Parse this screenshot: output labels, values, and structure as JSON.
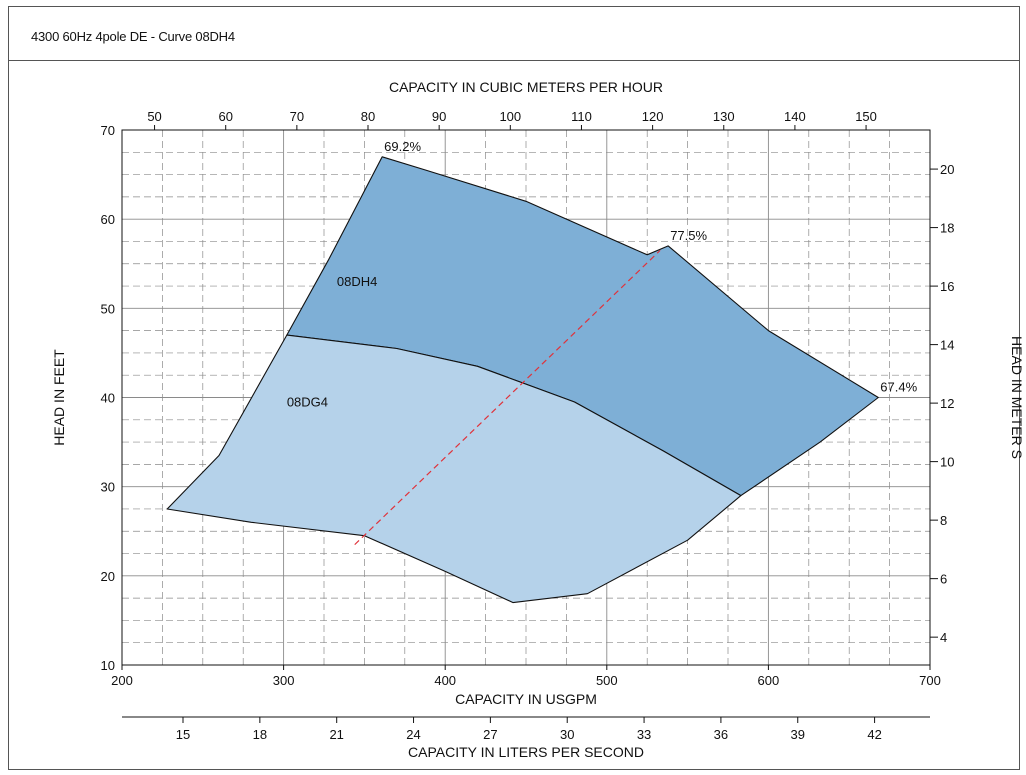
{
  "page": {
    "title": "4300 60Hz 4pole DE - Curve 08DH4"
  },
  "colors": {
    "region_upper": "#7eafd6",
    "region_lower": "#b5d2ea",
    "efficiency_line": "#e0323a",
    "grid": "#8a8a8a",
    "outline": "#111111"
  },
  "chart_data": {
    "type": "area",
    "title": "",
    "xlabel": "CAPACITY IN USGPM",
    "ylabel": "HEAD IN FEET",
    "xlim": [
      200,
      700
    ],
    "ylim": [
      10,
      70
    ],
    "x_ticks": [
      200,
      300,
      400,
      500,
      600,
      700
    ],
    "y_ticks": [
      10,
      20,
      30,
      40,
      50,
      60,
      70
    ],
    "grid": true,
    "secondary_axes": {
      "top": {
        "label": "CAPACITY IN CUBIC METERS PER HOUR",
        "ticks": [
          50,
          60,
          70,
          80,
          90,
          100,
          110,
          120,
          130,
          140,
          150
        ],
        "usgpm_per_unit": 4.4029
      },
      "bottom": {
        "label": "CAPACITY IN LITERS PER SECOND",
        "ticks": [
          15,
          18,
          21,
          24,
          27,
          30,
          33,
          36,
          39,
          42
        ],
        "usgpm_per_unit": 15.8503
      },
      "right": {
        "label": "HEAD IN METER S",
        "ticks": [
          4,
          6,
          8,
          10,
          12,
          14,
          16,
          18,
          20
        ],
        "feet_per_unit": 3.28084
      }
    },
    "series": [
      {
        "name": "08DH4",
        "label_at": [
          333,
          52.5
        ],
        "outline": [
          [
            302,
            47
          ],
          [
            328,
            55.5
          ],
          [
            361,
            67
          ],
          [
            388,
            65.5
          ],
          [
            450,
            62
          ],
          [
            525,
            56
          ],
          [
            538,
            57
          ],
          [
            600,
            47.5
          ],
          [
            668,
            40
          ],
          [
            632,
            35
          ],
          [
            583,
            29
          ],
          [
            535,
            34
          ],
          [
            480,
            39.5
          ],
          [
            420,
            43.5
          ],
          [
            370,
            45.5
          ],
          [
            302,
            47
          ]
        ]
      },
      {
        "name": "08DG4",
        "label_at": [
          302,
          39
        ],
        "outline": [
          [
            228,
            27.5
          ],
          [
            260,
            33.5
          ],
          [
            302,
            47
          ],
          [
            370,
            45.5
          ],
          [
            420,
            43.5
          ],
          [
            480,
            39.5
          ],
          [
            535,
            34
          ],
          [
            583,
            29
          ],
          [
            550,
            24
          ],
          [
            488,
            18
          ],
          [
            442,
            17
          ],
          [
            400,
            20.5
          ],
          [
            350,
            24.5
          ],
          [
            280,
            26
          ],
          [
            228,
            27.5
          ]
        ]
      }
    ],
    "efficiency_line": {
      "from": [
        344,
        23.5
      ],
      "to": [
        533,
        56.5
      ]
    },
    "annotations": [
      {
        "text": "69.2%",
        "x": 361,
        "y": 67
      },
      {
        "text": "77.5%",
        "x": 538,
        "y": 57
      },
      {
        "text": "67.4%",
        "x": 668,
        "y": 40
      }
    ]
  }
}
